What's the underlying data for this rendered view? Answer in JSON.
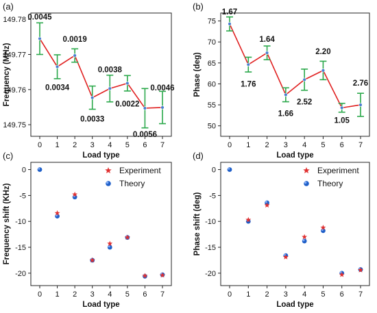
{
  "chart_data": [
    {
      "panel": "(a)",
      "type": "line",
      "xlabel": "Load type",
      "ylabel": "Frequency (MHz)",
      "x": [
        0,
        1,
        2,
        3,
        4,
        5,
        6,
        7
      ],
      "x_ticks": [
        "0",
        "1",
        "2",
        "3",
        "4",
        "5",
        "6",
        "7"
      ],
      "y_ticks": [
        "149.75",
        "149.76",
        "149.77",
        "149.78"
      ],
      "ylim": [
        149.7467,
        149.7818
      ],
      "values": [
        149.7745,
        149.7665,
        149.7697,
        149.7577,
        149.7603,
        149.7618,
        149.7547,
        149.7549
      ],
      "errors": [
        0.0045,
        0.0034,
        0.0019,
        0.0033,
        0.0038,
        0.0022,
        0.0056,
        0.0046
      ],
      "labels": [
        "0.0045",
        "0.0034",
        "0.0019",
        "0.0033",
        "0.0038",
        "0.0022",
        "0.0056",
        "0.0046"
      ],
      "line_color": "#e02020",
      "error_color": "#2aa84a",
      "marker_color": "#4a7fd0"
    },
    {
      "panel": "(b)",
      "type": "line",
      "xlabel": "Load type",
      "ylabel": "Phase (deg)",
      "x": [
        0,
        1,
        2,
        3,
        4,
        5,
        6,
        7
      ],
      "x_ticks": [
        "0",
        "1",
        "2",
        "3",
        "4",
        "5",
        "6",
        "7"
      ],
      "y_ticks": [
        "50",
        "55",
        "60",
        "65",
        "70",
        "75"
      ],
      "ylim": [
        47.5,
        76.9
      ],
      "values": [
        74.3,
        64.6,
        67.4,
        57.4,
        61.0,
        63.2,
        54.3,
        55.0
      ],
      "errors": [
        1.67,
        1.76,
        1.64,
        1.66,
        2.52,
        2.2,
        1.05,
        2.76
      ],
      "labels": [
        "1.67",
        "1.76",
        "1.64",
        "1.66",
        "2.52",
        "2.20",
        "1.05",
        "2.76"
      ],
      "line_color": "#e02020",
      "error_color": "#2aa84a",
      "marker_color": "#4a7fd0"
    },
    {
      "panel": "(c)",
      "type": "scatter",
      "xlabel": "Load type",
      "ylabel": "Frequency shift (KHz)",
      "x": [
        0,
        1,
        2,
        3,
        4,
        5,
        6,
        7
      ],
      "x_ticks": [
        "0",
        "1",
        "2",
        "3",
        "4",
        "5",
        "6",
        "7"
      ],
      "y_ticks": [
        "0",
        "-5",
        "-10",
        "-15",
        "-20"
      ],
      "ylim": [
        -22.4,
        1.4
      ],
      "legend_position": "top-right",
      "series": [
        {
          "name": "Experiment",
          "marker": "star",
          "color": "#e03030",
          "values": [
            0,
            -8.4,
            -4.8,
            -17.5,
            -14.3,
            -13.1,
            -20.5,
            -20.4
          ]
        },
        {
          "name": "Theory",
          "marker": "circle",
          "color": "#2a6fd6",
          "values": [
            0,
            -9.0,
            -5.3,
            -17.5,
            -15.0,
            -13.1,
            -20.6,
            -20.3
          ]
        }
      ]
    },
    {
      "panel": "(d)",
      "type": "scatter",
      "xlabel": "Load type",
      "ylabel": "Phase shift (deg)",
      "x": [
        0,
        1,
        2,
        3,
        4,
        5,
        6,
        7
      ],
      "x_ticks": [
        "0",
        "1",
        "2",
        "3",
        "4",
        "5",
        "6",
        "7"
      ],
      "y_ticks": [
        "0",
        "-5",
        "-10",
        "-15",
        "-20"
      ],
      "ylim": [
        -22.4,
        1.4
      ],
      "legend_position": "top-right",
      "series": [
        {
          "name": "Experiment",
          "marker": "star",
          "color": "#e03030",
          "values": [
            0,
            -9.7,
            -6.9,
            -16.9,
            -13.0,
            -11.2,
            -20.3,
            -19.4
          ]
        },
        {
          "name": "Theory",
          "marker": "circle",
          "color": "#2a6fd6",
          "values": [
            0,
            -10.0,
            -6.4,
            -16.6,
            -13.8,
            -11.8,
            -20.0,
            -19.3
          ]
        }
      ]
    }
  ]
}
